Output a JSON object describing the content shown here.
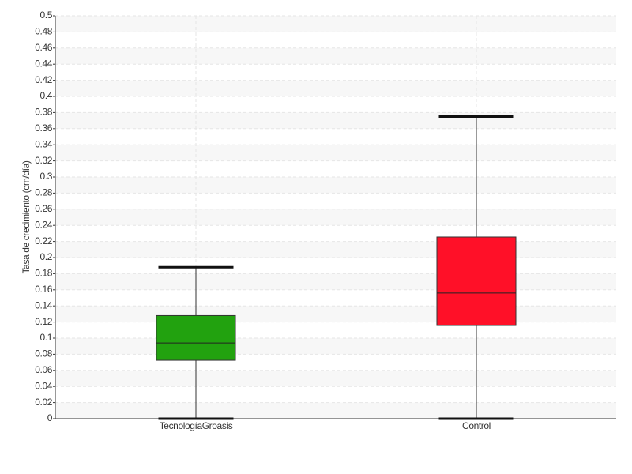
{
  "chart_data": {
    "type": "box",
    "y_label": "Tasa de crecimiento (cm/día)",
    "categories": [
      "TecnologíaGroasis",
      "Control"
    ],
    "boxes": [
      {
        "low": 0,
        "q1": 0.0725,
        "median": 0.094,
        "q3": 0.128,
        "high": 0.188,
        "color": "#22a20f"
      },
      {
        "low": 0,
        "q1": 0.1157,
        "median": 0.156,
        "q3": 0.2255,
        "high": 0.375,
        "color": "#ff1028"
      }
    ],
    "ylim": [
      0,
      0.5
    ],
    "yticks": [
      0,
      0.02,
      0.04,
      0.06,
      0.08,
      0.1,
      0.12,
      0.14,
      0.16,
      0.18,
      0.2,
      0.22,
      0.24,
      0.26,
      0.28,
      0.3,
      0.32,
      0.34,
      0.36,
      0.38,
      0.4,
      0.42,
      0.44,
      0.46,
      0.48,
      0.5
    ],
    "grid": true
  }
}
